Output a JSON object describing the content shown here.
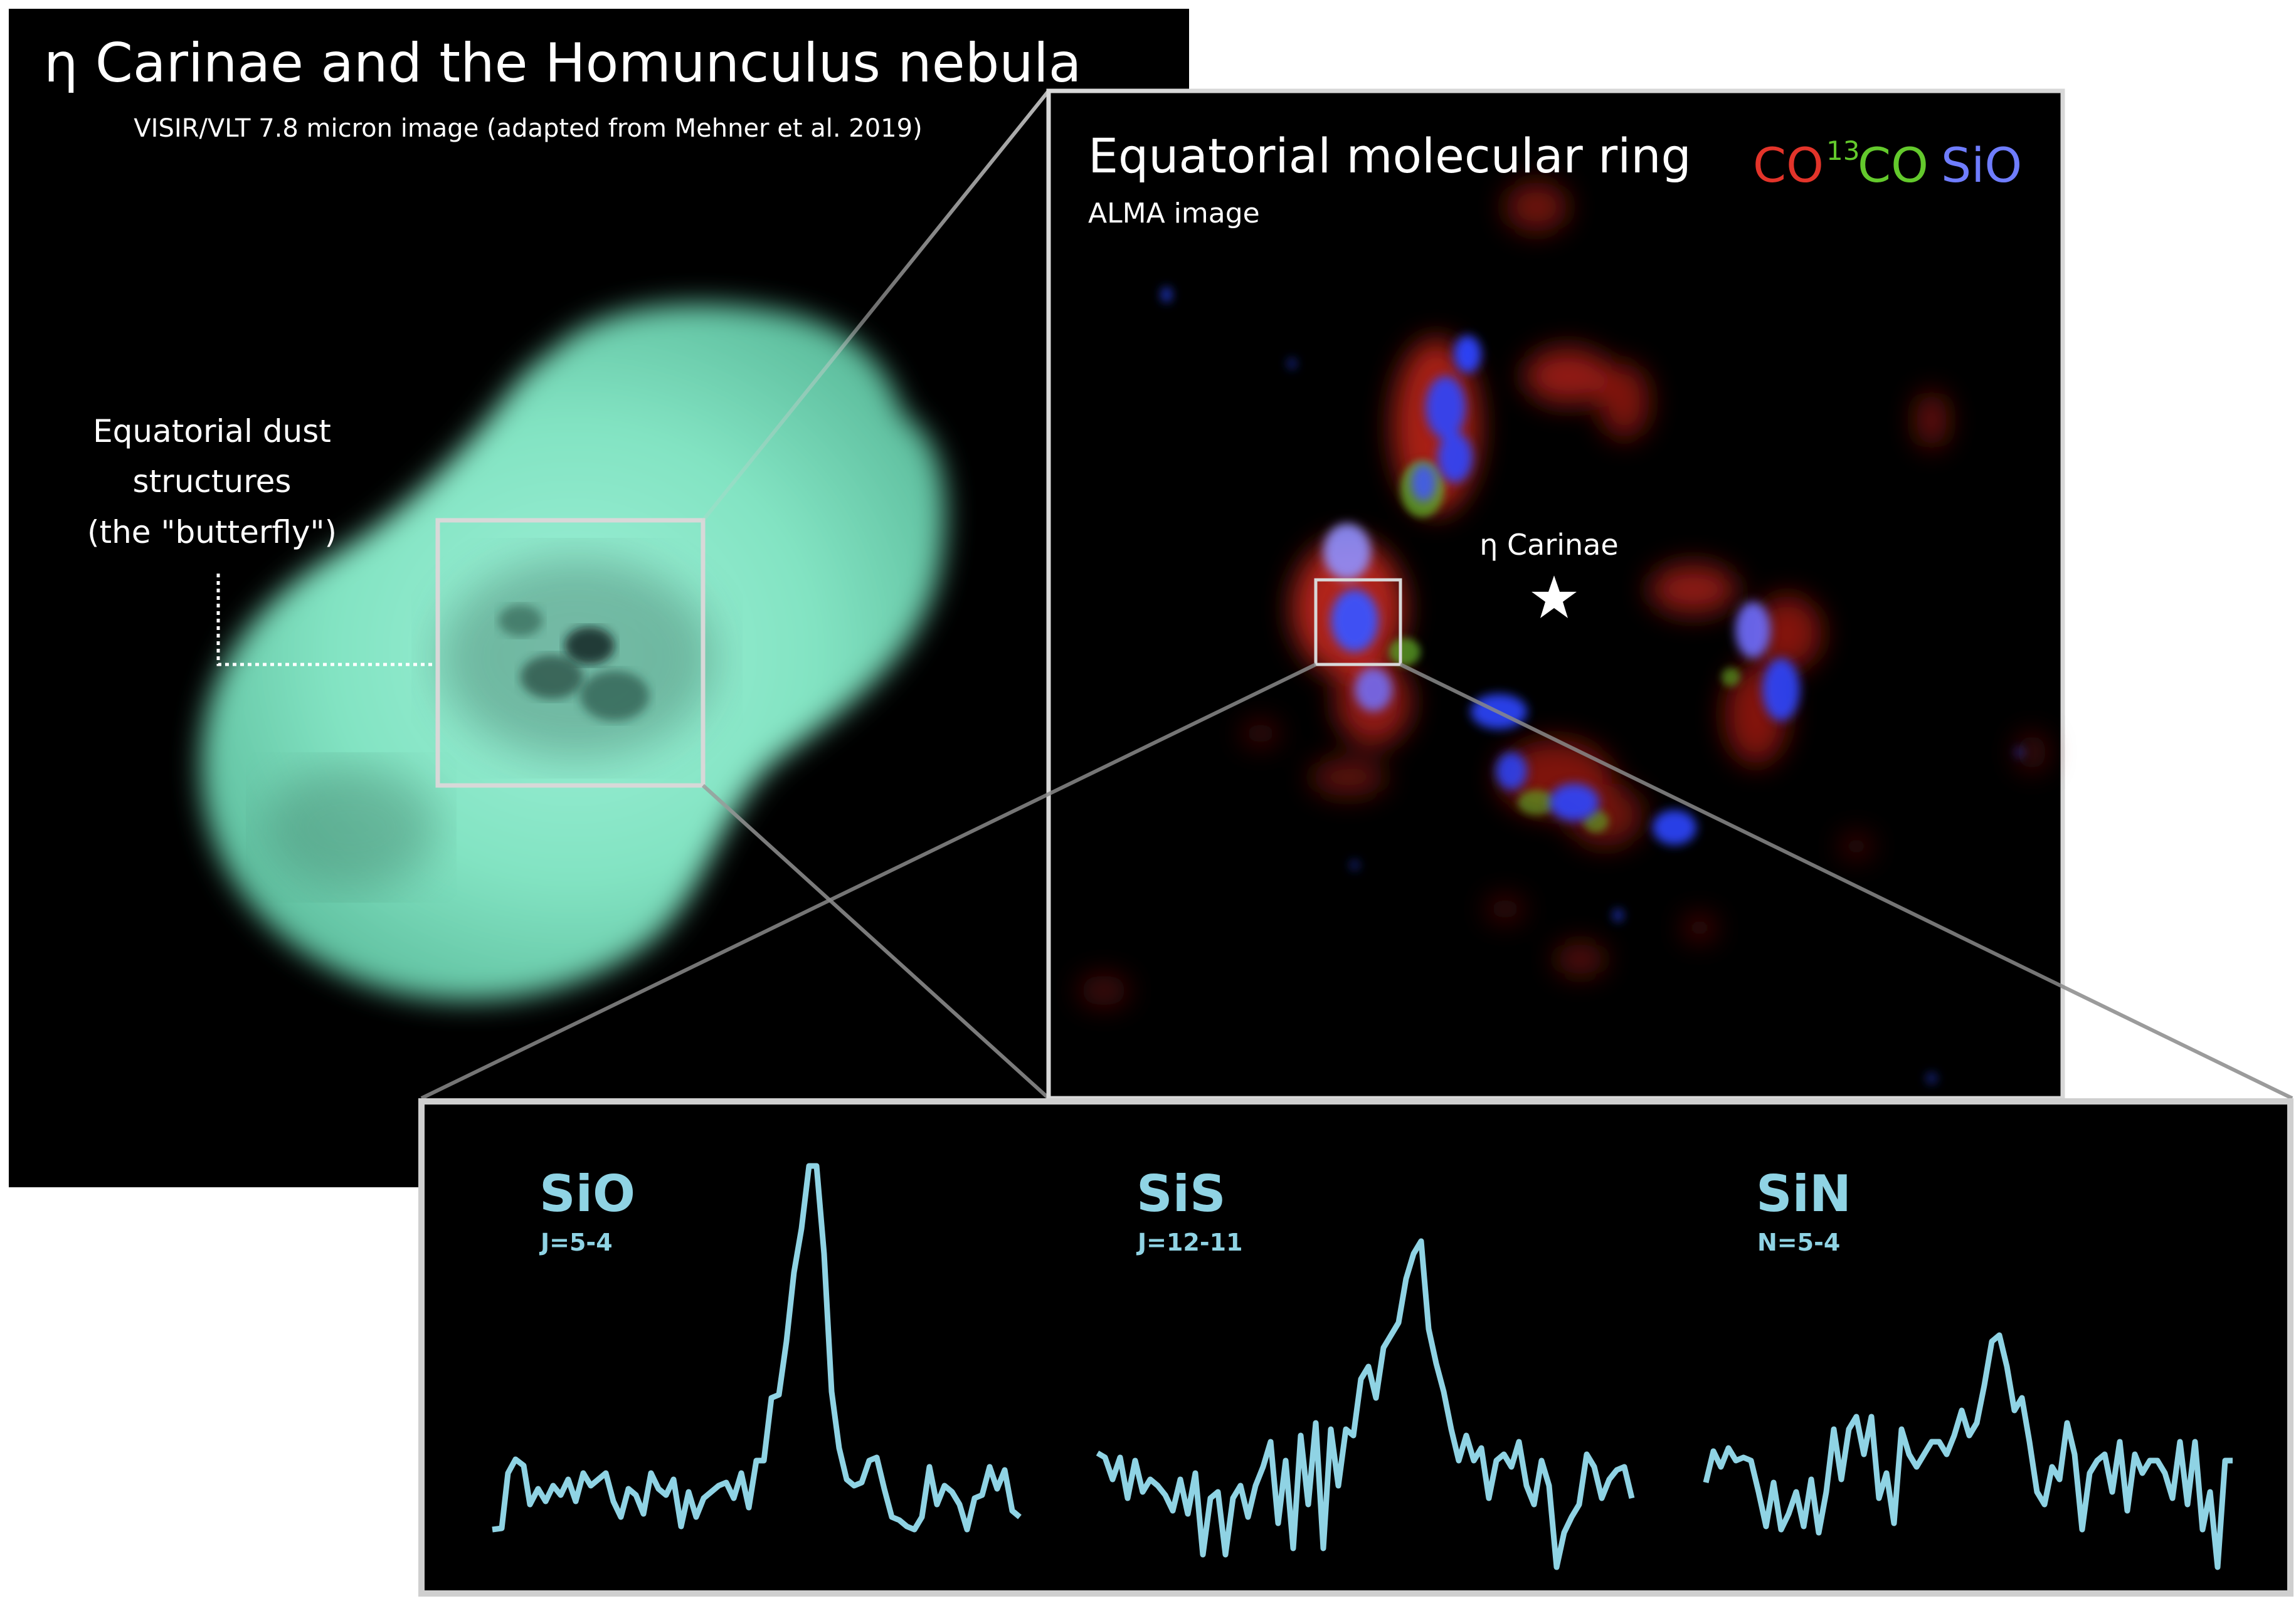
{
  "left_panel": {
    "title": "η Carinae and the Homunculus nebula",
    "subtitle": "VISIR/VLT 7.8 micron image (adapted from Mehner et al. 2019)",
    "dust_label_lines": [
      "Equatorial dust",
      "structures",
      "(the \"butterfly\")"
    ]
  },
  "right_panel": {
    "title": "Equatorial molecular ring",
    "subtitle": "ALMA image",
    "legend": {
      "co": {
        "text": "CO",
        "color": "#e3342a"
      },
      "c13o": {
        "sup": "13",
        "text": "CO",
        "color": "#63c92c"
      },
      "sio": {
        "text": "SiO",
        "color": "#6f7dff"
      }
    },
    "star_label": "η Carinae"
  },
  "spectra_panel": {
    "line_color": "#8fd3e4",
    "spectra": [
      {
        "name": "SiO",
        "transition": "J=5-4"
      },
      {
        "name": "SiS",
        "transition": "J=12-11"
      },
      {
        "name": "SiN",
        "transition": "N=5-4"
      }
    ]
  }
}
